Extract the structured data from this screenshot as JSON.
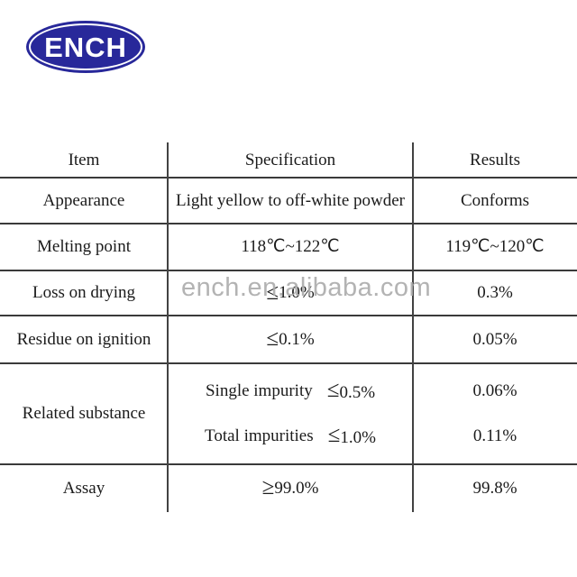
{
  "brand": {
    "name": "ENCH",
    "ellipse_color": "#28289a",
    "text_color": "#ffffff"
  },
  "watermark": {
    "text": "ench.en.alibaba.com",
    "color": "#ababab"
  },
  "table": {
    "headers": [
      "Item",
      "Specification",
      "Results"
    ],
    "rows": [
      {
        "item": "Appearance",
        "spec": "Light yellow to off-white powder",
        "result": "Conforms"
      },
      {
        "item": "Melting point",
        "spec": "118℃~122℃",
        "result": "119℃~120℃"
      },
      {
        "item": "Loss on drying",
        "spec_sym": "≤",
        "spec_val": "1.0%",
        "result": "0.3%"
      },
      {
        "item": "Residue on ignition",
        "spec_sym": "≤",
        "spec_val": "0.1%",
        "result": "0.05%"
      },
      {
        "item": "Related substance",
        "spec_line1_label": "Single impurity",
        "spec_line1_sym": "≤",
        "spec_line1_val": "0.5%",
        "spec_line2_label": "Total impurities",
        "spec_line2_sym": "≤",
        "spec_line2_val": "1.0%",
        "result_line1": "0.06%",
        "result_line2": "0.11%"
      },
      {
        "item": "Assay",
        "spec_sym": "≥",
        "spec_val": "99.0%",
        "result": "99.8%"
      }
    ]
  }
}
